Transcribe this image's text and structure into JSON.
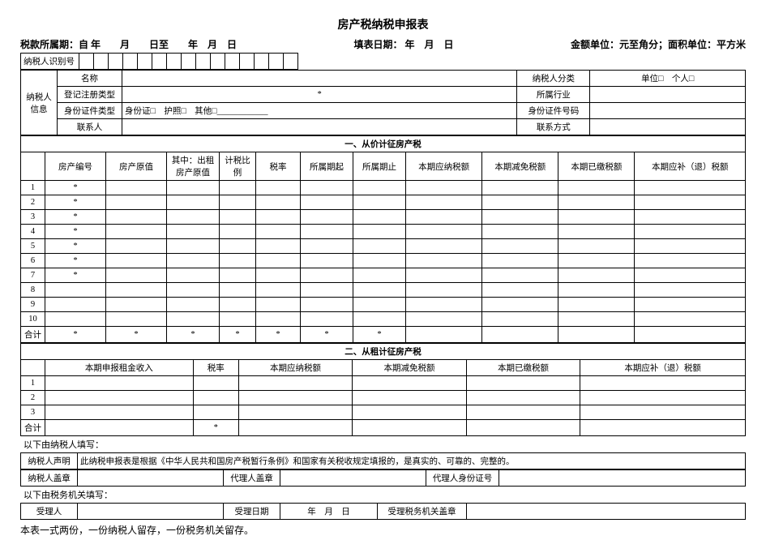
{
  "title": "房产税纳税申报表",
  "header": {
    "period_label": "税款所属期：自",
    "period_mid": "年　　月　　日至　　年　月　日",
    "fill_date_label": "填表日期：",
    "fill_date_val": "年　月　日",
    "unit_label": "金额单位：元至角分；面积单位：平方米"
  },
  "id_label": "纳税人识别号",
  "info": {
    "side_label": "纳税人信息",
    "row1": {
      "c1": "名称",
      "c2": "",
      "c3": "纳税人分类",
      "c4": "单位□　个人□"
    },
    "row2": {
      "c1": "登记注册类型",
      "c2": "*",
      "c3": "所属行业",
      "c4": ""
    },
    "row3": {
      "c1": "身份证件类型",
      "c2": "身份证□　护照□　其他□____________",
      "c3": "身份证件号码",
      "c4": ""
    },
    "row4": {
      "c1": "联系人",
      "c2": "",
      "c3": "联系方式",
      "c4": ""
    }
  },
  "section1": {
    "header": "一、从价计征房产税",
    "cols": [
      "",
      "房产编号",
      "房产原值",
      "其中：出租房产原值",
      "计税比例",
      "税率",
      "所属期起",
      "所属期止",
      "本期应纳税额",
      "本期减免税额",
      "本期已缴税额",
      "本期应补（退）税额"
    ],
    "rows": [
      [
        "1",
        "*",
        "",
        "",
        "",
        "",
        "",
        "",
        "",
        "",
        "",
        ""
      ],
      [
        "2",
        "*",
        "",
        "",
        "",
        "",
        "",
        "",
        "",
        "",
        "",
        ""
      ],
      [
        "3",
        "*",
        "",
        "",
        "",
        "",
        "",
        "",
        "",
        "",
        "",
        ""
      ],
      [
        "4",
        "*",
        "",
        "",
        "",
        "",
        "",
        "",
        "",
        "",
        "",
        ""
      ],
      [
        "5",
        "*",
        "",
        "",
        "",
        "",
        "",
        "",
        "",
        "",
        "",
        ""
      ],
      [
        "6",
        "*",
        "",
        "",
        "",
        "",
        "",
        "",
        "",
        "",
        "",
        ""
      ],
      [
        "7",
        "*",
        "",
        "",
        "",
        "",
        "",
        "",
        "",
        "",
        "",
        ""
      ],
      [
        "8",
        "",
        "",
        "",
        "",
        "",
        "",
        "",
        "",
        "",
        "",
        ""
      ],
      [
        "9",
        "",
        "",
        "",
        "",
        "",
        "",
        "",
        "",
        "",
        "",
        ""
      ],
      [
        "10",
        "",
        "",
        "",
        "",
        "",
        "",
        "",
        "",
        "",
        "",
        ""
      ]
    ],
    "total_label": "合计",
    "total": [
      "*",
      "*",
      "*",
      "*",
      "*",
      "*",
      "*",
      "",
      "",
      "",
      ""
    ]
  },
  "section2": {
    "header": "二、从租计征房产税",
    "cols": [
      "",
      "本期申报租金收入",
      "税率",
      "本期应纳税额",
      "本期减免税额",
      "本期已缴税额",
      "本期应补（退）税额"
    ],
    "rows": [
      [
        "1",
        "",
        "",
        "",
        "",
        "",
        ""
      ],
      [
        "2",
        "",
        "",
        "",
        "",
        "",
        ""
      ],
      [
        "3",
        "",
        "",
        "",
        "",
        "",
        ""
      ]
    ],
    "total": [
      "合计",
      "",
      "*",
      "",
      "",
      "",
      ""
    ]
  },
  "filled_by_taxpayer": "以下由纳税人填写：",
  "declaration": {
    "label": "纳税人声明",
    "text": "此纳税申报表是根据《中华人民共和国房产税暂行条例》和国家有关税收规定填报的，是真实的、可靠的、完整的。"
  },
  "sign_row": {
    "c1": "纳税人盖章",
    "c2": "代理人盖章",
    "c3": "代理人身份证号"
  },
  "filled_by_tax_auth": "以下由税务机关填写：",
  "auth_row": {
    "c1": "受理人",
    "c2": "受理日期",
    "c2v": "年　月　日",
    "c3": "受理税务机关盖章"
  },
  "footer": "本表一式两份，一份纳税人留存，一份税务机关留存。"
}
